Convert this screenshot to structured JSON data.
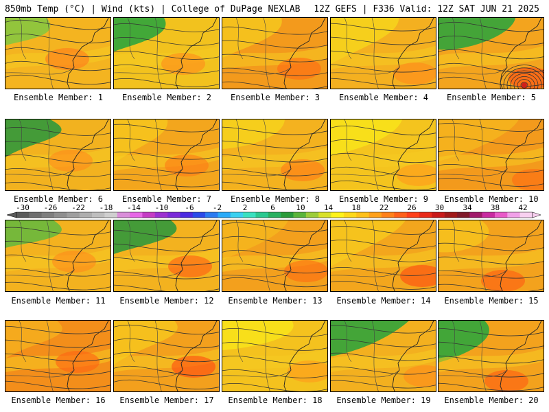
{
  "header": {
    "left": "850mb Temp (°C) | Wind (kts) | College of DuPage NEXLAB",
    "right": "12Z GEFS | F336 Valid: 12Z SAT JUN 21 2025"
  },
  "label_prefix": "Ensemble Member: ",
  "members": [
    {
      "id": 1,
      "label": "Ensemble Member: 1",
      "base": "#f4b420",
      "tint": "#8cc63e",
      "hot": "#ff7a1a"
    },
    {
      "id": 2,
      "label": "Ensemble Member: 2",
      "base": "#f2c21e",
      "tint": "#38a63a",
      "hot": "#ff8a1a"
    },
    {
      "id": 3,
      "label": "Ensemble Member: 3",
      "base": "#f39a1c",
      "tint": "#f4c21e",
      "hot": "#ff6a12"
    },
    {
      "id": 4,
      "label": "Ensemble Member: 4",
      "base": "#f4b020",
      "tint": "#f6d11c",
      "hot": "#ff8a1a"
    },
    {
      "id": 5,
      "label": "Ensemble Member: 5",
      "base": "#f3a41e",
      "tint": "#3aa43a",
      "hot": "#ff4a10"
    },
    {
      "id": 6,
      "label": "Ensemble Member: 6",
      "base": "#f2b21f",
      "tint": "#3a9a3a",
      "hot": "#ff8a1a"
    },
    {
      "id": 7,
      "label": "Ensemble Member: 7",
      "base": "#f3a61d",
      "tint": "#f5c21e",
      "hot": "#ff7a16"
    },
    {
      "id": 8,
      "label": "Ensemble Member: 8",
      "base": "#f4b21f",
      "tint": "#f6d01c",
      "hot": "#ff7a16"
    },
    {
      "id": 9,
      "label": "Ensemble Member: 9",
      "base": "#f4c41e",
      "tint": "#f8e01a",
      "hot": "#ff9a1a"
    },
    {
      "id": 10,
      "label": "Ensemble Member: 10",
      "base": "#f39a1c",
      "tint": "#f4b21e",
      "hot": "#ff6a12"
    },
    {
      "id": 11,
      "label": "Ensemble Member: 11",
      "base": "#f3b21f",
      "tint": "#6fb83c",
      "hot": "#ff8a1a"
    },
    {
      "id": 12,
      "label": "Ensemble Member: 12",
      "base": "#f3b21f",
      "tint": "#3a9a3a",
      "hot": "#ff5a12"
    },
    {
      "id": 13,
      "label": "Ensemble Member: 13",
      "base": "#f3a01d",
      "tint": "#f4b41e",
      "hot": "#ff6a12"
    },
    {
      "id": 14,
      "label": "Ensemble Member: 14",
      "base": "#f3a61d",
      "tint": "#f5c41e",
      "hot": "#ff4a10"
    },
    {
      "id": 15,
      "label": "Ensemble Member: 15",
      "base": "#f3a21d",
      "tint": "#f5c01e",
      "hot": "#ff5a12"
    },
    {
      "id": 16,
      "label": "Ensemble Member: 16",
      "base": "#f38e1a",
      "tint": "#f4ac1e",
      "hot": "#ff6212"
    },
    {
      "id": 17,
      "label": "Ensemble Member: 17",
      "base": "#f3a01d",
      "tint": "#f5c21e",
      "hot": "#ff4a10"
    },
    {
      "id": 18,
      "label": "Ensemble Member: 18",
      "base": "#f4c21e",
      "tint": "#f8e01a",
      "hot": "#ff9a1a"
    },
    {
      "id": 19,
      "label": "Ensemble Member: 19",
      "base": "#f3b01f",
      "tint": "#3aa43a",
      "hot": "#ff8a1a"
    },
    {
      "id": 20,
      "label": "Ensemble Member: 20",
      "base": "#f3a21d",
      "tint": "#38a63a",
      "hot": "#ff5a12"
    }
  ],
  "colorbar": {
    "tick_labels": [
      "-30",
      "-26",
      "-22",
      "-18",
      "-14",
      "-10",
      "-6",
      "-2",
      "2",
      "6",
      "10",
      "14",
      "18",
      "22",
      "26",
      "30",
      "34",
      "38",
      "42"
    ],
    "colors": [
      "#5a5a5a",
      "#6e6e6e",
      "#7e7e7e",
      "#8e8e8e",
      "#9e9e9e",
      "#aeaeae",
      "#bebebe",
      "#cfcfcf",
      "#d98ed9",
      "#e666e6",
      "#c43cc4",
      "#9b30d0",
      "#7a2ad8",
      "#4a2ae0",
      "#2a4ae8",
      "#2a7af0",
      "#2aaaf8",
      "#3ad0f0",
      "#3ae0c0",
      "#2ac890",
      "#28b060",
      "#2a9a3a",
      "#5ab43a",
      "#9ccc3a",
      "#d8e02a",
      "#fff21a",
      "#ffd81a",
      "#ffc01a",
      "#ffa01a",
      "#ff801a",
      "#ff601a",
      "#ff401a",
      "#e82a1a",
      "#c81a1a",
      "#a01a1a",
      "#801a2a",
      "#a01a6a",
      "#c82aa0",
      "#e85ac8",
      "#f0a0e8",
      "#f8d0f0"
    ]
  }
}
